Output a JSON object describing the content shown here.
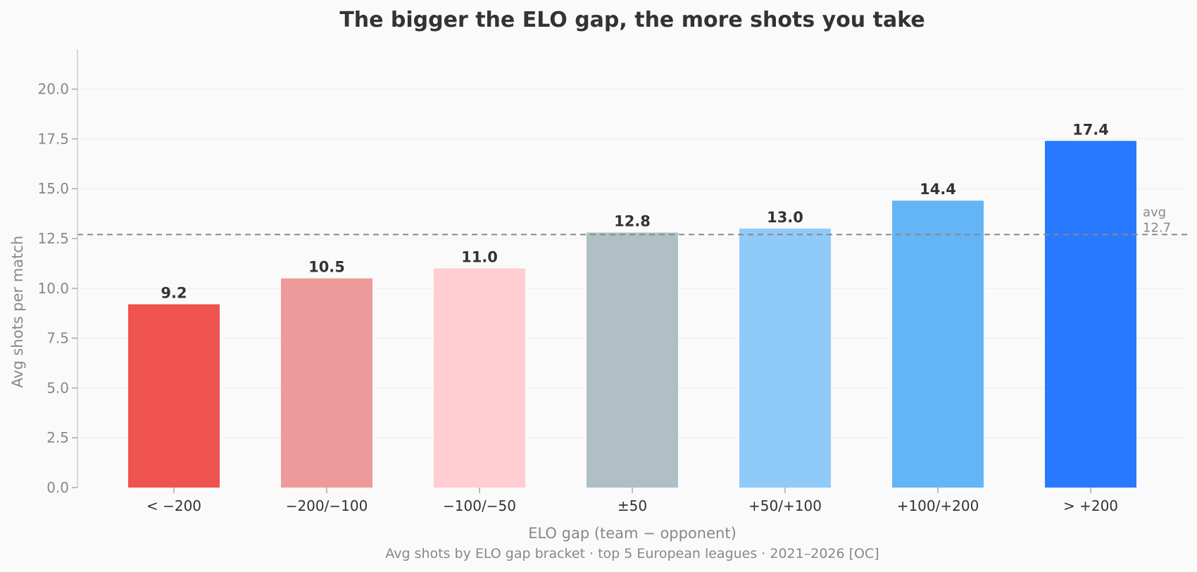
{
  "chart_data": {
    "type": "bar",
    "title": "The bigger the ELO gap, the more shots you take",
    "xlabel": "ELO gap  (team − opponent)",
    "ylabel": "Avg shots per match",
    "caption": "Avg shots by ELO gap bracket · top 5 European leagues · 2021–2026  [OC]",
    "categories": [
      "< −200",
      "−200/−100",
      "−100/−50",
      "±50",
      "+50/+100",
      "+100/+200",
      "> +200"
    ],
    "values": [
      9.2,
      10.5,
      11.0,
      12.8,
      13.0,
      14.4,
      17.4
    ],
    "value_labels": [
      "9.2",
      "10.5",
      "11.0",
      "12.8",
      "13.0",
      "14.4",
      "17.4"
    ],
    "colors": [
      "#ef5350",
      "#ef9a9a",
      "#ffcdd2",
      "#b0bec5",
      "#90caf9",
      "#64b5f6",
      "#2979ff"
    ],
    "ylim": [
      0,
      22
    ],
    "yticks": [
      0,
      2.5,
      5,
      7.5,
      10,
      12.5,
      15,
      17.5,
      20
    ],
    "ytick_labels": [
      "0.0",
      "2.5",
      "5.0",
      "7.5",
      "10.0",
      "12.5",
      "15.0",
      "17.5",
      "20.0"
    ],
    "grid": "horizontal",
    "reference_line": {
      "value": 12.7,
      "label_line1": "avg",
      "label_line2": "12.7",
      "style": "dashed",
      "color": "#888888"
    }
  }
}
